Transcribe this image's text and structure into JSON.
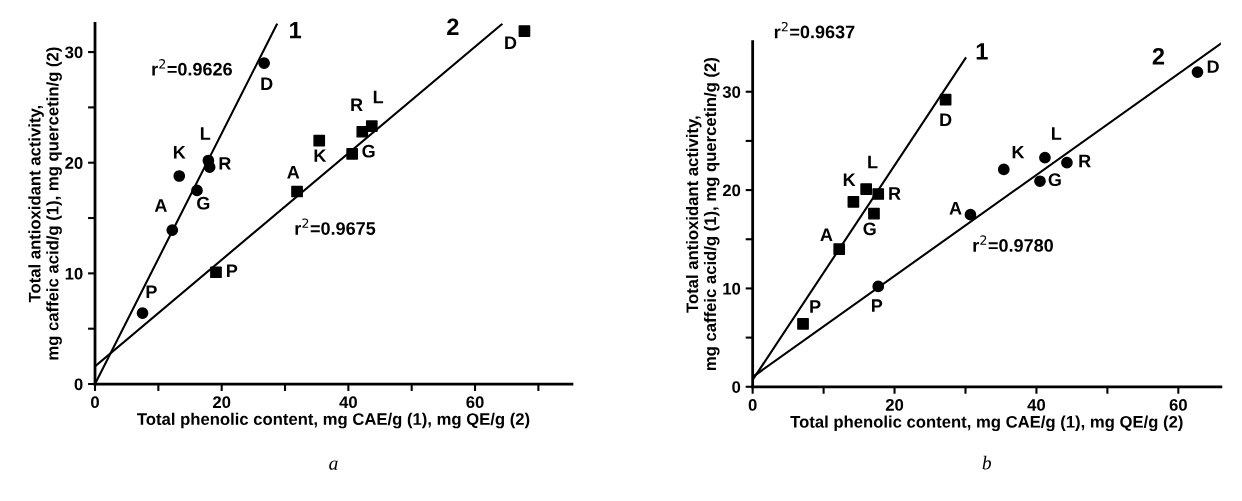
{
  "chart_data": [
    {
      "type": "scatter",
      "xlabel": "Total phenolic content, mg CAE/g (1), mg QE/g (2)",
      "ylabel": "Total antioxidant activity,\nmg caffeic acid/g (1), mg quercetin/g (2)",
      "xlim": [
        0,
        75.3
      ],
      "ylim": [
        0,
        32.6
      ],
      "xticks": [
        0,
        {
          "value": 10,
          "label": null
        },
        20,
        {
          "value": 30,
          "label": null
        },
        40,
        {
          "value": 50,
          "label": null
        },
        60,
        {
          "value": 70,
          "label": null
        }
      ],
      "yticks": [
        0,
        {
          "value": 5,
          "label": null
        },
        10,
        {
          "value": 15,
          "label": null
        },
        20,
        {
          "value": 25,
          "label": null
        },
        30
      ],
      "grid": false,
      "legend": false,
      "series": [
        {
          "type": "scatter",
          "marker": "circle",
          "color": "#000000",
          "x": [
            7.5,
            12.2,
            13.3,
            16.1,
            17.9,
            18.1,
            26.7
          ],
          "values": [
            6.4,
            13.9,
            18.8,
            17.5,
            20.2,
            19.6,
            29.0
          ]
        },
        {
          "type": "scatter",
          "marker": "square",
          "color": "#000000",
          "x": [
            19.1,
            31.9,
            35.4,
            40.6,
            42.2,
            43.7,
            67.8
          ],
          "values": [
            10.1,
            17.4,
            22.0,
            20.8,
            22.8,
            23.3,
            31.9
          ]
        },
        {
          "type": "line",
          "marker": "none",
          "color": "#000000",
          "x": [
            0,
            28.7
          ],
          "values": [
            0,
            32.5
          ]
        },
        {
          "type": "line",
          "marker": "none",
          "color": "#000000",
          "x": [
            0,
            64.2
          ],
          "values": [
            1.6,
            32.5
          ]
        }
      ],
      "annotations": [
        {
          "text": "P",
          "x": 7.5,
          "y": 6.4
        },
        {
          "text": "A",
          "x": 12.2,
          "y": 13.9
        },
        {
          "text": "K",
          "x": 13.3,
          "y": 18.8
        },
        {
          "text": "G",
          "x": 16.1,
          "y": 17.5
        },
        {
          "text": "L",
          "x": 17.9,
          "y": 20.2
        },
        {
          "text": "R",
          "x": 18.1,
          "y": 19.6
        },
        {
          "text": "D",
          "x": 26.7,
          "y": 29.0
        },
        {
          "text": "1",
          "x": 28.7,
          "y": 32.5
        },
        {
          "text": "r$^{2}$=0.9626",
          "x": 25.0,
          "y": 28.3
        },
        {
          "text": "P",
          "x": 19.1,
          "y": 10.1
        },
        {
          "text": "A",
          "x": 31.9,
          "y": 17.4
        },
        {
          "text": "K",
          "x": 35.4,
          "y": 22.0
        },
        {
          "text": "G",
          "x": 40.6,
          "y": 20.8
        },
        {
          "text": "R",
          "x": 42.2,
          "y": 22.8
        },
        {
          "text": "L",
          "x": 43.7,
          "y": 23.3
        },
        {
          "text": "D",
          "x": 67.8,
          "y": 31.9
        },
        {
          "text": "2",
          "x": 64.2,
          "y": 32.5
        },
        {
          "text": "r$^{2}$=0.9675",
          "x": 37.9,
          "y": 19.8
        },
        "a"
      ]
    },
    {
      "type": "scatter",
      "xlabel": "Total phenolic content, mg CAE/g (1), mg QE/g (2)",
      "ylabel": "Total antioxidant activity,\nmg caffeic acid/g (1), mg quercetin/g (2)",
      "xlim": [
        0,
        66.0
      ],
      "ylim": [
        0,
        35.1
      ],
      "xticks": [
        0,
        {
          "value": 10,
          "label": null
        },
        20,
        {
          "value": 30,
          "label": null
        },
        40,
        {
          "value": 50,
          "label": null
        },
        60
      ],
      "yticks": [
        0,
        {
          "value": 5,
          "label": null
        },
        10,
        {
          "value": 15,
          "label": null
        },
        20,
        {
          "value": 25,
          "label": null
        },
        30
      ],
      "grid": false,
      "legend": false,
      "series": [
        {
          "type": "scatter",
          "marker": "square",
          "color": "#000000",
          "x": [
            7.1,
            12.2,
            14.2,
            17.1,
            16.0,
            17.7,
            27.2
          ],
          "values": [
            6.4,
            14.0,
            18.8,
            17.6,
            20.1,
            19.6,
            29.2
          ]
        },
        {
          "type": "scatter",
          "marker": "circle",
          "color": "#000000",
          "x": [
            17.7,
            30.7,
            35.4,
            40.5,
            41.2,
            44.3,
            62.7
          ],
          "values": [
            10.2,
            17.5,
            22.1,
            20.9,
            23.3,
            22.8,
            32.0
          ]
        },
        {
          "type": "line",
          "marker": "none",
          "color": "#000000",
          "x": [
            0,
            30.0
          ],
          "values": [
            0.7,
            33.4
          ]
        },
        {
          "type": "line",
          "marker": "none",
          "color": "#000000",
          "x": [
            0,
            66.0
          ],
          "values": [
            1.0,
            34.9
          ]
        }
      ],
      "annotations": [
        {
          "text": "P",
          "x": 7.1,
          "y": 6.4
        },
        {
          "text": "A",
          "x": 12.2,
          "y": 14.0
        },
        {
          "text": "K",
          "x": 14.2,
          "y": 18.8
        },
        {
          "text": "L",
          "x": 16.0,
          "y": 20.1
        },
        {
          "text": "R",
          "x": 17.7,
          "y": 19.6
        },
        {
          "text": "G",
          "x": 17.1,
          "y": 17.6
        },
        {
          "text": "D",
          "x": 27.2,
          "y": 29.2
        },
        {
          "text": "1",
          "x": 30.0,
          "y": 33.4
        },
        "r$^{2}$=0.9637",
        {
          "text": "P",
          "x": 17.7,
          "y": 10.2
        },
        {
          "text": "A",
          "x": 30.7,
          "y": 17.5
        },
        {
          "text": "K",
          "x": 35.4,
          "y": 22.1
        },
        {
          "text": "L",
          "x": 41.2,
          "y": 23.3
        },
        {
          "text": "R",
          "x": 44.3,
          "y": 22.8
        },
        {
          "text": "G",
          "x": 40.5,
          "y": 20.9
        },
        {
          "text": "D",
          "x": 62.7,
          "y": 32.0
        },
        {
          "text": "2",
          "x": 66.0,
          "y": 34.9
        },
        {
          "text": "r$^{2}$=0.9780",
          "x": 36.7,
          "y": 19.9
        },
        "b"
      ]
    }
  ]
}
